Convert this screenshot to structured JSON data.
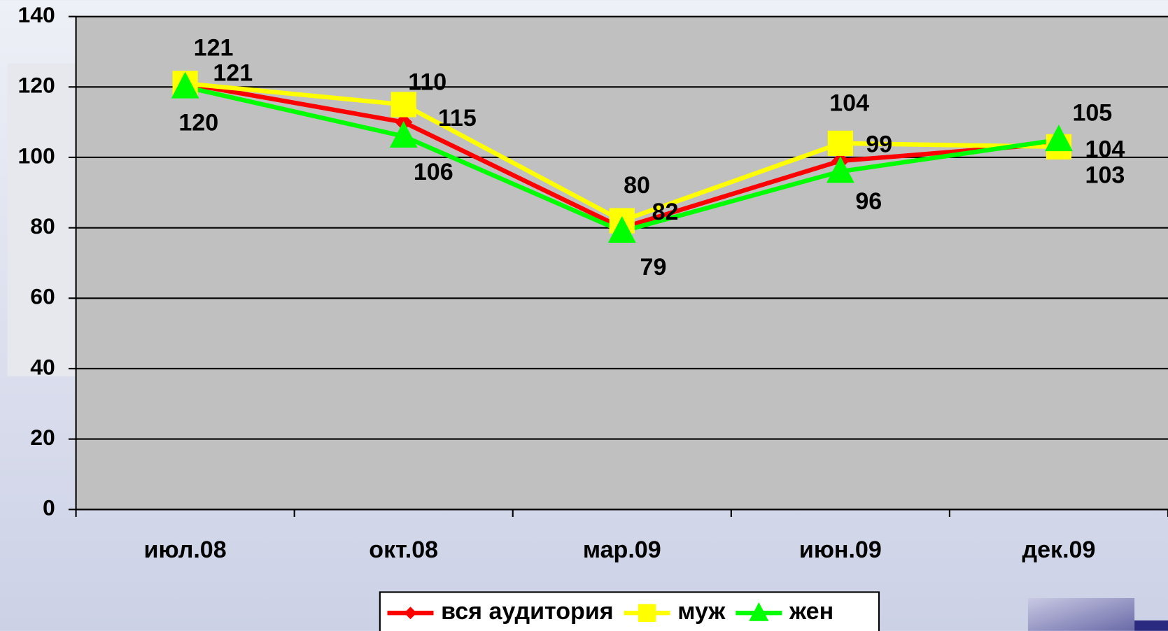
{
  "chart_data": {
    "type": "line",
    "categories": [
      "июл.08",
      "окт.08",
      "мар.09",
      "июн.09",
      "дек.09"
    ],
    "series": [
      {
        "name": "вся аудитория",
        "color": "#ff0000",
        "marker": "diamond",
        "values": [
          121,
          110,
          80,
          99,
          104
        ]
      },
      {
        "name": "муж",
        "color": "#ffff00",
        "marker": "square",
        "values": [
          121,
          115,
          82,
          104,
          103
        ]
      },
      {
        "name": "жен",
        "color": "#00ff00",
        "marker": "triangle",
        "values": [
          120,
          106,
          79,
          96,
          105
        ]
      }
    ],
    "ylim": [
      0,
      140
    ],
    "yticks": [
      0,
      20,
      40,
      60,
      80,
      100,
      120,
      140
    ],
    "grid": true,
    "legend": "bottom"
  }
}
